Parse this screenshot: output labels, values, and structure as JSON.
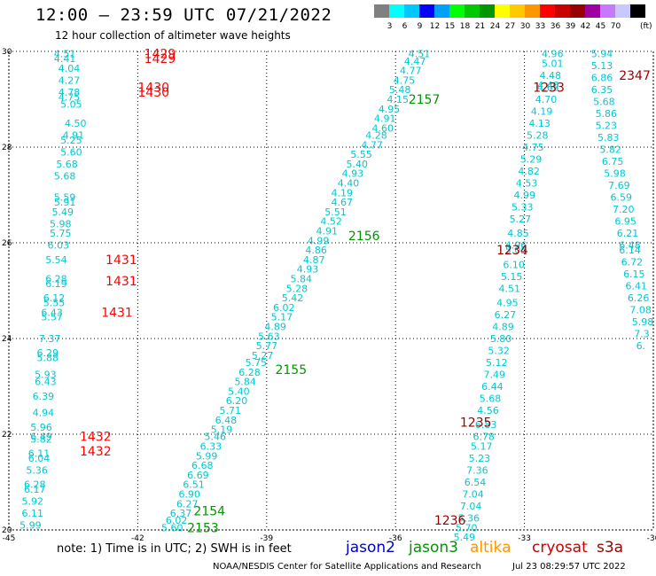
{
  "title": "12:00 – 23:59 UTC 07/21/2022",
  "subtitle": "12 hour collection of altimeter wave heights",
  "color_scale": {
    "colors": [
      "#808080",
      "#00ffff",
      "#00c8ff",
      "#0000ff",
      "#00a0ff",
      "#00ff00",
      "#00c800",
      "#009600",
      "#ffff00",
      "#ffc800",
      "#ff9600",
      "#ff0000",
      "#c80000",
      "#960000",
      "#a000a0",
      "#c878ff",
      "#c8c8ff",
      "#000000"
    ],
    "labels": [
      "3",
      "6",
      "9",
      "12",
      "15",
      "18",
      "21",
      "24",
      "27",
      "30",
      "33",
      "36",
      "39",
      "42",
      "45",
      "70"
    ],
    "unit": "(ft)"
  },
  "axes": {
    "lon_labels": [
      "-45",
      "-42",
      "-39",
      "-36",
      "-33",
      "-30"
    ],
    "lat_labels": [
      "30",
      "28",
      "26",
      "24",
      "22",
      "20"
    ]
  },
  "orbit_labels": [
    {
      "text": "1429",
      "lon": -41.85,
      "lat": 29.95,
      "color": "#ff0000"
    },
    {
      "text": "1429",
      "lon": -41.85,
      "lat": 29.85,
      "color": "#ff0000"
    },
    {
      "text": "1430",
      "lon": -42.0,
      "lat": 29.25,
      "color": "#ff0000"
    },
    {
      "text": "1430",
      "lon": -42.0,
      "lat": 29.15,
      "color": "#ff0000"
    },
    {
      "text": "1431",
      "lon": -42.75,
      "lat": 25.65,
      "color": "#ff0000"
    },
    {
      "text": "1431",
      "lon": -42.75,
      "lat": 25.2,
      "color": "#ff0000"
    },
    {
      "text": "1431",
      "lon": -42.85,
      "lat": 24.55,
      "color": "#ff0000"
    },
    {
      "text": "1432",
      "lon": -43.35,
      "lat": 21.95,
      "color": "#ff0000"
    },
    {
      "text": "1432",
      "lon": -43.35,
      "lat": 21.65,
      "color": "#ff0000"
    },
    {
      "text": "2157",
      "lon": -35.7,
      "lat": 29.0,
      "color": "#009600"
    },
    {
      "text": "2156",
      "lon": -37.1,
      "lat": 26.15,
      "color": "#009600"
    },
    {
      "text": "2155",
      "lon": -38.8,
      "lat": 23.35,
      "color": "#009600"
    },
    {
      "text": "2154",
      "lon": -40.7,
      "lat": 20.4,
      "color": "#009600"
    },
    {
      "text": "2153",
      "lon": -40.85,
      "lat": 20.05,
      "color": "#009600"
    },
    {
      "text": "1233",
      "lon": -32.8,
      "lat": 29.25,
      "color": "#960000"
    },
    {
      "text": "1234",
      "lon": -33.65,
      "lat": 25.85,
      "color": "#960000"
    },
    {
      "text": "1235",
      "lon": -34.5,
      "lat": 22.25,
      "color": "#960000"
    },
    {
      "text": "1236",
      "lon": -35.1,
      "lat": 20.2,
      "color": "#960000"
    },
    {
      "text": "2347",
      "lon": -30.8,
      "lat": 29.5,
      "color": "#960000"
    }
  ],
  "track_wave_heights": [
    {
      "name": "jason2-left",
      "color": "#00c8d2",
      "points": [
        {
          "lon": -43.95,
          "lat": 29.95,
          "v": "4.51"
        },
        {
          "lon": -43.95,
          "lat": 29.85,
          "v": "4.41"
        },
        {
          "lon": -43.85,
          "lat": 29.65,
          "v": "4.04"
        },
        {
          "lon": -43.85,
          "lat": 29.4,
          "v": "4.27"
        },
        {
          "lon": -43.85,
          "lat": 29.15,
          "v": "4.78"
        },
        {
          "lon": -43.85,
          "lat": 29.05,
          "v": "4.75"
        },
        {
          "lon": -43.8,
          "lat": 28.9,
          "v": "5.05"
        },
        {
          "lon": -43.7,
          "lat": 28.5,
          "v": "4.50"
        },
        {
          "lon": -43.75,
          "lat": 28.25,
          "v": "4.91"
        },
        {
          "lon": -43.8,
          "lat": 28.15,
          "v": "5.25"
        },
        {
          "lon": -43.8,
          "lat": 27.9,
          "v": "5.60"
        },
        {
          "lon": -43.9,
          "lat": 27.65,
          "v": "5.68"
        },
        {
          "lon": -43.95,
          "lat": 27.4,
          "v": "5.68"
        },
        {
          "lon": -43.95,
          "lat": 26.95,
          "v": "5.59"
        },
        {
          "lon": -43.95,
          "lat": 26.85,
          "v": "5.91"
        },
        {
          "lon": -44.0,
          "lat": 26.65,
          "v": "5.49"
        },
        {
          "lon": -44.05,
          "lat": 26.4,
          "v": "5.98"
        },
        {
          "lon": -44.05,
          "lat": 26.2,
          "v": "5.75"
        },
        {
          "lon": -44.1,
          "lat": 25.95,
          "v": "6.03"
        },
        {
          "lon": -44.15,
          "lat": 25.65,
          "v": "5.54"
        },
        {
          "lon": -44.15,
          "lat": 25.25,
          "v": "6.28"
        },
        {
          "lon": -44.15,
          "lat": 25.15,
          "v": "6.19"
        },
        {
          "lon": -44.2,
          "lat": 24.85,
          "v": "6.12"
        },
        {
          "lon": -44.2,
          "lat": 24.75,
          "v": "5.55"
        },
        {
          "lon": -44.25,
          "lat": 24.55,
          "v": "6.43"
        },
        {
          "lon": -44.25,
          "lat": 24.45,
          "v": "5.57"
        },
        {
          "lon": -44.3,
          "lat": 24.0,
          "v": "7.37"
        },
        {
          "lon": -44.35,
          "lat": 23.7,
          "v": "6.29"
        },
        {
          "lon": -44.35,
          "lat": 23.6,
          "v": "5.88"
        },
        {
          "lon": -44.4,
          "lat": 23.25,
          "v": "5.93"
        },
        {
          "lon": -44.4,
          "lat": 23.1,
          "v": "6.43"
        },
        {
          "lon": -44.45,
          "lat": 22.8,
          "v": "6.39"
        },
        {
          "lon": -44.45,
          "lat": 22.45,
          "v": "4.94"
        },
        {
          "lon": -44.5,
          "lat": 22.15,
          "v": "5.96"
        },
        {
          "lon": -44.5,
          "lat": 21.95,
          "v": "6.49"
        },
        {
          "lon": -44.5,
          "lat": 21.9,
          "v": "5.82"
        },
        {
          "lon": -44.55,
          "lat": 21.6,
          "v": "6.11"
        },
        {
          "lon": -44.55,
          "lat": 21.5,
          "v": "6.04"
        },
        {
          "lon": -44.6,
          "lat": 21.25,
          "v": "5.36"
        },
        {
          "lon": -44.65,
          "lat": 20.95,
          "v": "6.28"
        },
        {
          "lon": -44.65,
          "lat": 20.85,
          "v": "6.17"
        },
        {
          "lon": -44.7,
          "lat": 20.6,
          "v": "5.92"
        },
        {
          "lon": -44.7,
          "lat": 20.35,
          "v": "6.11"
        },
        {
          "lon": -44.75,
          "lat": 20.1,
          "v": "5.99"
        }
      ]
    },
    {
      "name": "jason3-track",
      "color": "#00c8d2",
      "points": [
        {
          "lon": -35.7,
          "lat": 29.95,
          "v": "4.51"
        },
        {
          "lon": -35.8,
          "lat": 29.8,
          "v": "4.47"
        },
        {
          "lon": -35.9,
          "lat": 29.6,
          "v": "4.77"
        },
        {
          "lon": -36.05,
          "lat": 29.4,
          "v": "4.75"
        },
        {
          "lon": -36.15,
          "lat": 29.2,
          "v": "5.48"
        },
        {
          "lon": -36.2,
          "lat": 29.0,
          "v": "4.15"
        },
        {
          "lon": -36.4,
          "lat": 28.8,
          "v": "4.95"
        },
        {
          "lon": -36.5,
          "lat": 28.6,
          "v": "4.91"
        },
        {
          "lon": -36.55,
          "lat": 28.4,
          "v": "4.60"
        },
        {
          "lon": -36.7,
          "lat": 28.25,
          "v": "4.28"
        },
        {
          "lon": -36.8,
          "lat": 28.05,
          "v": "4.77"
        },
        {
          "lon": -37.05,
          "lat": 27.85,
          "v": "5.55"
        },
        {
          "lon": -37.15,
          "lat": 27.65,
          "v": "5.40"
        },
        {
          "lon": -37.25,
          "lat": 27.45,
          "v": "4.93"
        },
        {
          "lon": -37.35,
          "lat": 27.25,
          "v": "4.40"
        },
        {
          "lon": -37.5,
          "lat": 27.05,
          "v": "4.19"
        },
        {
          "lon": -37.5,
          "lat": 26.85,
          "v": "4.67"
        },
        {
          "lon": -37.65,
          "lat": 26.65,
          "v": "5.51"
        },
        {
          "lon": -37.75,
          "lat": 26.45,
          "v": "4.52"
        },
        {
          "lon": -37.85,
          "lat": 26.25,
          "v": "4.91"
        },
        {
          "lon": -38.05,
          "lat": 26.05,
          "v": "4.99"
        },
        {
          "lon": -38.1,
          "lat": 25.85,
          "v": "4.86"
        },
        {
          "lon": -38.15,
          "lat": 25.65,
          "v": "4.87"
        },
        {
          "lon": -38.3,
          "lat": 25.45,
          "v": "4.93"
        },
        {
          "lon": -38.45,
          "lat": 25.25,
          "v": "5.84"
        },
        {
          "lon": -38.55,
          "lat": 25.05,
          "v": "5.28"
        },
        {
          "lon": -38.65,
          "lat": 24.85,
          "v": "5.42"
        },
        {
          "lon": -38.85,
          "lat": 24.65,
          "v": "6.02"
        },
        {
          "lon": -38.9,
          "lat": 24.45,
          "v": "5.17"
        },
        {
          "lon": -39.05,
          "lat": 24.25,
          "v": "4.89"
        },
        {
          "lon": -39.2,
          "lat": 24.05,
          "v": "5.63"
        },
        {
          "lon": -39.25,
          "lat": 23.85,
          "v": "5.77"
        },
        {
          "lon": -39.35,
          "lat": 23.65,
          "v": "5.27"
        },
        {
          "lon": -39.5,
          "lat": 23.5,
          "v": "5.75"
        },
        {
          "lon": -39.65,
          "lat": 23.3,
          "v": "6.28"
        },
        {
          "lon": -39.75,
          "lat": 23.1,
          "v": "5.84"
        },
        {
          "lon": -39.9,
          "lat": 22.9,
          "v": "5.40"
        },
        {
          "lon": -39.95,
          "lat": 22.7,
          "v": "6.20"
        },
        {
          "lon": -40.1,
          "lat": 22.5,
          "v": "5.71"
        },
        {
          "lon": -40.2,
          "lat": 22.3,
          "v": "6.48"
        },
        {
          "lon": -40.3,
          "lat": 22.1,
          "v": "5.19"
        },
        {
          "lon": -40.45,
          "lat": 21.95,
          "v": "5.46"
        },
        {
          "lon": -40.55,
          "lat": 21.75,
          "v": "6.33"
        },
        {
          "lon": -40.65,
          "lat": 21.55,
          "v": "5.99"
        },
        {
          "lon": -40.75,
          "lat": 21.35,
          "v": "6.68"
        },
        {
          "lon": -40.85,
          "lat": 21.15,
          "v": "6.69"
        },
        {
          "lon": -40.95,
          "lat": 20.95,
          "v": "6.51"
        },
        {
          "lon": -41.05,
          "lat": 20.75,
          "v": "6.90"
        },
        {
          "lon": -41.1,
          "lat": 20.55,
          "v": "6.27"
        },
        {
          "lon": -41.25,
          "lat": 20.35,
          "v": "6.37"
        },
        {
          "lon": -41.35,
          "lat": 20.2,
          "v": "6.02"
        },
        {
          "lon": -41.45,
          "lat": 20.05,
          "v": "5.60"
        }
      ]
    },
    {
      "name": "cryosat-track",
      "color": "#00c8d2",
      "points": [
        {
          "lon": -32.6,
          "lat": 29.95,
          "v": "4.96"
        },
        {
          "lon": -32.6,
          "lat": 29.75,
          "v": "5.01"
        },
        {
          "lon": -32.65,
          "lat": 29.5,
          "v": "4.48"
        },
        {
          "lon": -32.7,
          "lat": 29.3,
          "v": "4.40"
        },
        {
          "lon": -32.7,
          "lat": 29.25,
          "v": "4.63"
        },
        {
          "lon": -32.75,
          "lat": 29.0,
          "v": "4.70"
        },
        {
          "lon": -32.85,
          "lat": 28.75,
          "v": "4.19"
        },
        {
          "lon": -32.9,
          "lat": 28.5,
          "v": "4.13"
        },
        {
          "lon": -32.95,
          "lat": 28.25,
          "v": "5.28"
        },
        {
          "lon": -33.05,
          "lat": 28.0,
          "v": "4.75"
        },
        {
          "lon": -33.1,
          "lat": 27.75,
          "v": "5.29"
        },
        {
          "lon": -33.15,
          "lat": 27.5,
          "v": "4.82"
        },
        {
          "lon": -33.2,
          "lat": 27.25,
          "v": "4.53"
        },
        {
          "lon": -33.25,
          "lat": 27.0,
          "v": "4.99"
        },
        {
          "lon": -33.3,
          "lat": 26.75,
          "v": "5.33"
        },
        {
          "lon": -33.35,
          "lat": 26.5,
          "v": "5.27"
        },
        {
          "lon": -33.4,
          "lat": 26.2,
          "v": "4.85"
        },
        {
          "lon": -33.45,
          "lat": 25.95,
          "v": "4.96"
        },
        {
          "lon": -33.45,
          "lat": 25.85,
          "v": "5.05"
        },
        {
          "lon": -33.5,
          "lat": 25.55,
          "v": "6.10"
        },
        {
          "lon": -33.55,
          "lat": 25.3,
          "v": "5.15"
        },
        {
          "lon": -33.6,
          "lat": 25.05,
          "v": "4.51"
        },
        {
          "lon": -33.65,
          "lat": 24.75,
          "v": "4.95"
        },
        {
          "lon": -33.7,
          "lat": 24.5,
          "v": "6.27"
        },
        {
          "lon": -33.75,
          "lat": 24.25,
          "v": "4.89"
        },
        {
          "lon": -33.8,
          "lat": 24.0,
          "v": "5.80"
        },
        {
          "lon": -33.85,
          "lat": 23.75,
          "v": "5.32"
        },
        {
          "lon": -33.9,
          "lat": 23.5,
          "v": "5.12"
        },
        {
          "lon": -33.95,
          "lat": 23.25,
          "v": "7.49"
        },
        {
          "lon": -34.0,
          "lat": 23.0,
          "v": "6.44"
        },
        {
          "lon": -34.05,
          "lat": 22.75,
          "v": "5.68"
        },
        {
          "lon": -34.1,
          "lat": 22.5,
          "v": "4.56"
        },
        {
          "lon": -34.15,
          "lat": 22.2,
          "v": "6.83"
        },
        {
          "lon": -34.2,
          "lat": 21.95,
          "v": "6.78"
        },
        {
          "lon": -34.25,
          "lat": 21.75,
          "v": "5.17"
        },
        {
          "lon": -34.3,
          "lat": 21.5,
          "v": "5.23"
        },
        {
          "lon": -34.35,
          "lat": 21.25,
          "v": "7.36"
        },
        {
          "lon": -34.4,
          "lat": 21.0,
          "v": "6.54"
        },
        {
          "lon": -34.45,
          "lat": 20.75,
          "v": "7.04"
        },
        {
          "lon": -34.5,
          "lat": 20.5,
          "v": "7.04"
        },
        {
          "lon": -34.55,
          "lat": 20.25,
          "v": "5.36"
        },
        {
          "lon": -34.6,
          "lat": 20.05,
          "v": "5.70"
        },
        {
          "lon": -34.65,
          "lat": 19.85,
          "v": "5.49"
        }
      ]
    },
    {
      "name": "s3a-track",
      "color": "#00c8d2",
      "points": [
        {
          "lon": -31.45,
          "lat": 29.95,
          "v": "5.94"
        },
        {
          "lon": -31.45,
          "lat": 29.7,
          "v": "5.13"
        },
        {
          "lon": -31.45,
          "lat": 29.45,
          "v": "6.86"
        },
        {
          "lon": -31.45,
          "lat": 29.2,
          "v": "6.35"
        },
        {
          "lon": -31.4,
          "lat": 28.95,
          "v": "5.68"
        },
        {
          "lon": -31.35,
          "lat": 28.7,
          "v": "5.86"
        },
        {
          "lon": -31.35,
          "lat": 28.45,
          "v": "5.23"
        },
        {
          "lon": -31.3,
          "lat": 28.2,
          "v": "5.83"
        },
        {
          "lon": -31.25,
          "lat": 27.95,
          "v": "5.82"
        },
        {
          "lon": -31.2,
          "lat": 27.7,
          "v": "6.75"
        },
        {
          "lon": -31.15,
          "lat": 27.45,
          "v": "5.98"
        },
        {
          "lon": -31.05,
          "lat": 27.2,
          "v": "7.69"
        },
        {
          "lon": -31.0,
          "lat": 26.95,
          "v": "6.59"
        },
        {
          "lon": -30.95,
          "lat": 26.7,
          "v": "7.20"
        },
        {
          "lon": -30.9,
          "lat": 26.45,
          "v": "6.95"
        },
        {
          "lon": -30.85,
          "lat": 26.2,
          "v": "6.21"
        },
        {
          "lon": -30.8,
          "lat": 25.95,
          "v": "6.48"
        },
        {
          "lon": -30.8,
          "lat": 25.85,
          "v": "6.14"
        },
        {
          "lon": -30.75,
          "lat": 25.6,
          "v": "6.72"
        },
        {
          "lon": -30.7,
          "lat": 25.35,
          "v": "6.15"
        },
        {
          "lon": -30.65,
          "lat": 25.1,
          "v": "6.41"
        },
        {
          "lon": -30.6,
          "lat": 24.85,
          "v": "6.26"
        },
        {
          "lon": -30.55,
          "lat": 24.6,
          "v": "7.08"
        },
        {
          "lon": -30.5,
          "lat": 24.35,
          "v": "5.98"
        },
        {
          "lon": -30.45,
          "lat": 24.1,
          "v": "7.3"
        },
        {
          "lon": -30.4,
          "lat": 23.85,
          "v": "6."
        }
      ]
    }
  ],
  "footer": {
    "note": "note:  1) Time is in UTC;  2) SWH is in feet",
    "legend": [
      {
        "label": "jason2",
        "color": "#0000c8"
      },
      {
        "label": "jason3",
        "color": "#009600"
      },
      {
        "label": "altika",
        "color": "#ff9600"
      },
      {
        "label": "cryosat",
        "color": "#c80000"
      },
      {
        "label": "s3a",
        "color": "#960000"
      }
    ],
    "credit": "NOAA/NESDIS Center for Satellite Applications and Research",
    "timestamp": "Jul 23 08:29:57 UTC 2022"
  }
}
